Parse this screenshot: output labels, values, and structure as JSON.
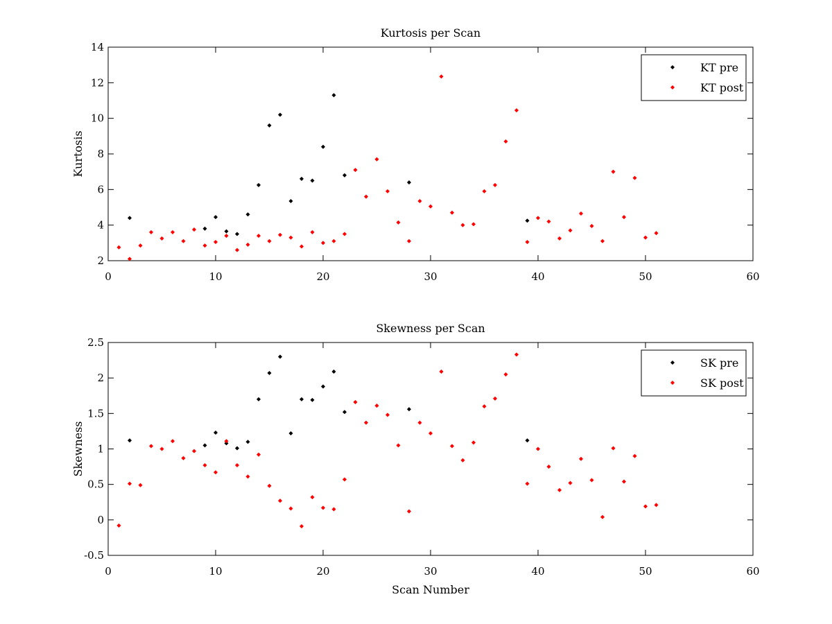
{
  "colors": {
    "pre": "#000000",
    "post": "#ff0000",
    "axes": "#000000",
    "background": "#ffffff"
  },
  "chart_data": [
    {
      "type": "scatter",
      "title": "Kurtosis per Scan",
      "xlabel": "",
      "ylabel": "Kurtosis",
      "xlim": [
        0,
        60
      ],
      "ylim": [
        2,
        14
      ],
      "xticks": [
        0,
        10,
        20,
        30,
        40,
        50,
        60
      ],
      "yticks": [
        2,
        4,
        6,
        8,
        10,
        12,
        14
      ],
      "grid": false,
      "legend_position": "top-right",
      "series": [
        {
          "name": "KT pre",
          "color": "#000000",
          "x": [
            2,
            9,
            10,
            11,
            12,
            13,
            14,
            15,
            16,
            17,
            18,
            19,
            20,
            21,
            22,
            28,
            39
          ],
          "y": [
            4.4,
            3.8,
            4.45,
            3.65,
            3.5,
            4.6,
            6.25,
            9.6,
            10.2,
            5.35,
            6.6,
            6.5,
            8.4,
            11.3,
            6.8,
            6.4,
            4.25
          ]
        },
        {
          "name": "KT post",
          "color": "#ff0000",
          "x": [
            1,
            2,
            3,
            4,
            5,
            6,
            7,
            8,
            9,
            10,
            11,
            12,
            13,
            14,
            15,
            16,
            17,
            18,
            19,
            20,
            21,
            22,
            23,
            24,
            25,
            26,
            27,
            28,
            29,
            30,
            31,
            32,
            33,
            34,
            35,
            36,
            37,
            38,
            39,
            40,
            41,
            42,
            43,
            44,
            45,
            46,
            47,
            48,
            49,
            50,
            51
          ],
          "y": [
            2.75,
            2.1,
            2.85,
            3.6,
            3.25,
            3.6,
            3.1,
            3.75,
            2.85,
            3.05,
            3.4,
            2.6,
            2.9,
            3.4,
            3.1,
            3.45,
            3.3,
            2.8,
            3.6,
            3.0,
            3.1,
            3.5,
            7.1,
            5.6,
            7.7,
            5.9,
            4.15,
            3.1,
            5.35,
            5.05,
            12.35,
            4.7,
            4.0,
            4.05,
            5.9,
            6.25,
            8.7,
            10.45,
            3.05,
            4.4,
            4.2,
            3.25,
            3.7,
            4.65,
            3.95,
            3.1,
            7.0,
            4.45,
            6.65,
            3.3,
            3.55
          ]
        }
      ]
    },
    {
      "type": "scatter",
      "title": "Skewness per Scan",
      "xlabel": "Scan Number",
      "ylabel": "Skewness",
      "xlim": [
        0,
        60
      ],
      "ylim": [
        -0.5,
        2.5
      ],
      "xticks": [
        0,
        10,
        20,
        30,
        40,
        50,
        60
      ],
      "yticks": [
        -0.5,
        0,
        0.5,
        1,
        1.5,
        2,
        2.5
      ],
      "grid": false,
      "legend_position": "top-right",
      "series": [
        {
          "name": "SK pre",
          "color": "#000000",
          "x": [
            2,
            9,
            10,
            11,
            12,
            13,
            14,
            15,
            16,
            17,
            18,
            19,
            20,
            21,
            22,
            28,
            39
          ],
          "y": [
            1.12,
            1.05,
            1.23,
            1.08,
            1.01,
            1.1,
            1.7,
            2.07,
            2.3,
            1.22,
            1.7,
            1.69,
            1.88,
            2.09,
            1.52,
            1.56,
            1.12
          ]
        },
        {
          "name": "SK post",
          "color": "#ff0000",
          "x": [
            1,
            2,
            3,
            4,
            5,
            6,
            7,
            8,
            9,
            10,
            11,
            12,
            13,
            14,
            15,
            16,
            17,
            18,
            19,
            20,
            21,
            22,
            23,
            24,
            25,
            26,
            27,
            28,
            29,
            30,
            31,
            32,
            33,
            34,
            35,
            36,
            37,
            38,
            39,
            40,
            41,
            42,
            43,
            44,
            45,
            46,
            47,
            48,
            49,
            50,
            51
          ],
          "y": [
            -0.08,
            0.51,
            0.49,
            1.04,
            1.0,
            1.11,
            0.87,
            0.97,
            0.77,
            0.67,
            1.11,
            0.77,
            0.61,
            0.92,
            0.48,
            0.27,
            0.16,
            -0.09,
            0.32,
            0.17,
            0.15,
            0.57,
            1.66,
            1.37,
            1.61,
            1.48,
            1.05,
            0.12,
            1.37,
            1.22,
            2.09,
            1.04,
            0.84,
            1.09,
            1.6,
            1.71,
            2.05,
            2.33,
            0.51,
            1.0,
            0.75,
            0.42,
            0.52,
            0.86,
            0.56,
            0.04,
            1.01,
            0.54,
            0.9,
            0.19,
            0.21
          ]
        }
      ]
    }
  ]
}
